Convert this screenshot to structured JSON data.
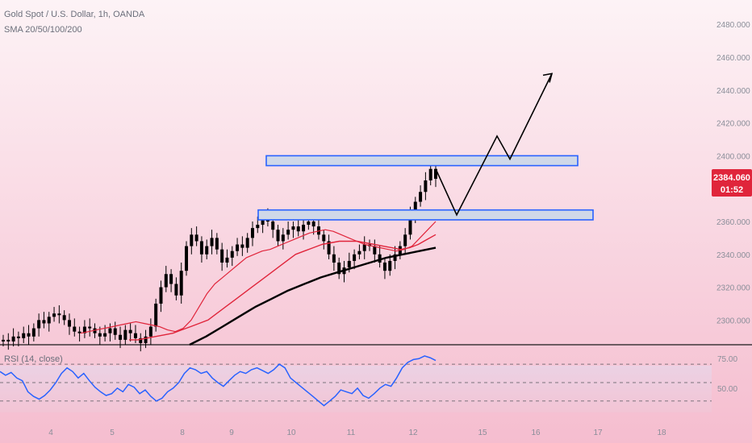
{
  "header": {
    "title": "Gold Spot / U.S. Dollar, 1h, OANDA",
    "indicator": "SMA 20/50/100/200"
  },
  "rsi": {
    "label": "RSI (14, close)",
    "levels": [
      "75.00",
      "50.00"
    ],
    "values": [
      62,
      58,
      61,
      55,
      52,
      40,
      35,
      32,
      36,
      42,
      50,
      60,
      66,
      62,
      55,
      60,
      52,
      45,
      40,
      36,
      38,
      44,
      40,
      48,
      45,
      38,
      42,
      35,
      30,
      33,
      40,
      44,
      50,
      60,
      66,
      64,
      60,
      62,
      55,
      50,
      46,
      52,
      58,
      62,
      60,
      64,
      66,
      63,
      60,
      64,
      70,
      66,
      55,
      50,
      45,
      40,
      35,
      30,
      25,
      30,
      35,
      42,
      40,
      38,
      44,
      36,
      33,
      38,
      44,
      48,
      46,
      55,
      66,
      72,
      75,
      76,
      79,
      77,
      74
    ]
  },
  "price_badge": {
    "price": "2384.060",
    "countdown": "01:52",
    "color": "#e0253b"
  },
  "colors": {
    "background_top": "#fdf1f4",
    "background_bottom": "#f6bfd0",
    "candle_up": "#000000",
    "candle_down": "#000000",
    "sma_red": "#e0253b",
    "sma_black": "#000000",
    "zone_fill": "#cfd8e8",
    "zone_border": "#2962ff",
    "rsi_line": "#2962ff"
  },
  "chart_data": {
    "type": "candlestick",
    "y_axis": {
      "ticks": [
        "2480.000",
        "2460.000",
        "2440.000",
        "2420.000",
        "2400.000",
        "2380.000",
        "2360.000",
        "2340.000",
        "2320.000",
        "2300.000"
      ],
      "range": [
        2285,
        2484
      ]
    },
    "x_axis": {
      "ticks": [
        "4",
        "5",
        "8",
        "9",
        "10",
        "11",
        "12",
        "15",
        "16",
        "17",
        "18"
      ]
    },
    "close": [
      2288,
      2287,
      2290,
      2289,
      2292,
      2290,
      2295,
      2300,
      2298,
      2302,
      2304,
      2303,
      2300,
      2296,
      2293,
      2292,
      2296,
      2295,
      2292,
      2290,
      2292,
      2295,
      2291,
      2288,
      2294,
      2292,
      2289,
      2286,
      2290,
      2296,
      2310,
      2320,
      2328,
      2322,
      2315,
      2330,
      2345,
      2352,
      2348,
      2340,
      2345,
      2350,
      2343,
      2335,
      2338,
      2342,
      2346,
      2344,
      2350,
      2356,
      2358,
      2364,
      2360,
      2355,
      2348,
      2352,
      2355,
      2357,
      2354,
      2358,
      2360,
      2357,
      2352,
      2348,
      2340,
      2335,
      2328,
      2332,
      2336,
      2340,
      2342,
      2346,
      2345,
      2340,
      2335,
      2330,
      2336,
      2340,
      2345,
      2352,
      2364,
      2372,
      2378,
      2385,
      2392,
      2386
    ],
    "sma_red_fast": [
      2292,
      2293,
      2294,
      2295,
      2296,
      2297,
      2298,
      2299,
      2298,
      2297,
      2296,
      2294,
      2293,
      2295,
      2300,
      2308,
      2316,
      2322,
      2326,
      2330,
      2334,
      2338,
      2340,
      2342,
      2343,
      2345,
      2347,
      2349,
      2351,
      2353,
      2354,
      2355,
      2354,
      2352,
      2350,
      2348,
      2346,
      2345,
      2344,
      2343,
      2342,
      2343,
      2345,
      2350,
      2355,
      2360
    ],
    "sma_red_slow": [
      2288,
      2288,
      2289,
      2290,
      2291,
      2292,
      2294,
      2296,
      2298,
      2300,
      2304,
      2308,
      2312,
      2316,
      2320,
      2324,
      2328,
      2332,
      2336,
      2340,
      2342,
      2344,
      2346,
      2347,
      2348,
      2348,
      2348,
      2347,
      2346,
      2345,
      2344,
      2343,
      2344,
      2346,
      2349,
      2352
    ],
    "sma_black": [
      2285,
      2290,
      2296,
      2302,
      2308,
      2313,
      2318,
      2322,
      2326,
      2329,
      2332,
      2335,
      2338,
      2340,
      2342,
      2344
    ],
    "zones": [
      {
        "name": "resistance-zone",
        "from": 2394,
        "to": 2400
      },
      {
        "name": "support-zone",
        "from": 2361,
        "to": 2367
      }
    ],
    "projection_path": [
      2392,
      2364,
      2412,
      2398,
      2450
    ]
  }
}
